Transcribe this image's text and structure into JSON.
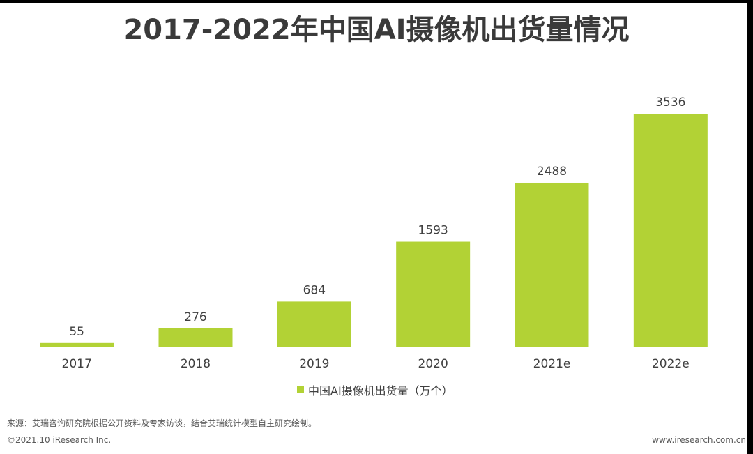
{
  "title": "2017-2022年中国AI摄像机出货量情况",
  "legend_label": "中国AI摄像机出货量（万个）",
  "source": "来源：艾瑞咨询研究院根据公开资料及专家访谈，结合艾瑞统计模型自主研究绘制。",
  "copyright": "©2021.10 iResearch Inc.",
  "website": "www.iresearch.com.cn",
  "colors": {
    "bar": "#b2d235",
    "axis": "#7f7f7f",
    "label": "#404040"
  },
  "chart_data": {
    "type": "bar",
    "categories": [
      "2017",
      "2018",
      "2019",
      "2020",
      "2021e",
      "2022e"
    ],
    "series": [
      {
        "name": "中国AI摄像机出货量（万个）",
        "values": [
          55,
          276,
          684,
          1593,
          2488,
          3536
        ]
      }
    ],
    "ylim": [
      0,
      3536
    ]
  }
}
